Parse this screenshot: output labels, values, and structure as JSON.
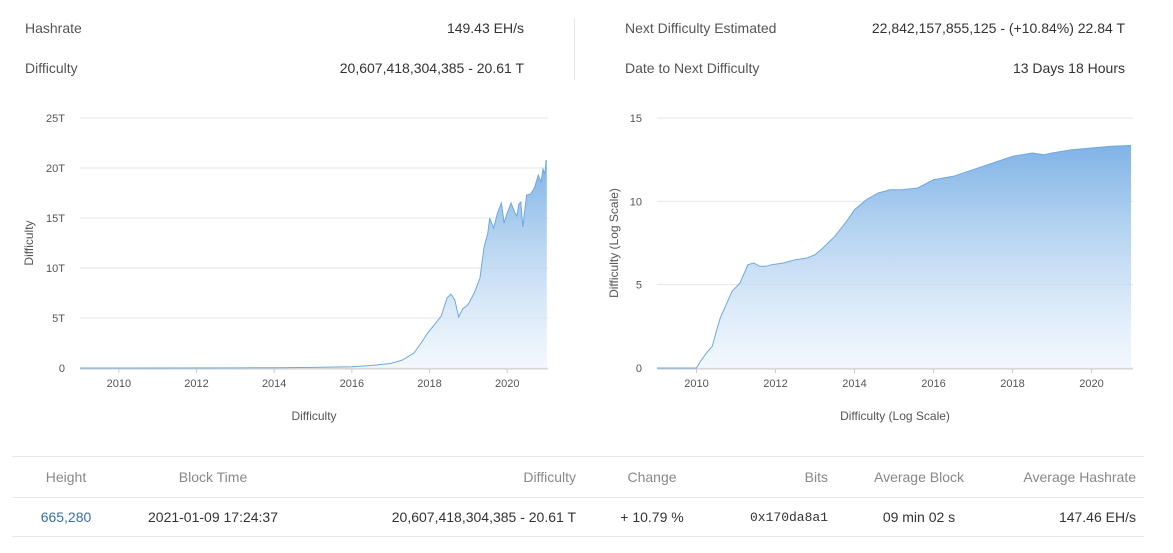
{
  "stats": {
    "hashrate_label": "Hashrate",
    "hashrate_value": "149.43 EH/s",
    "difficulty_label": "Difficulty",
    "difficulty_value": "20,607,418,304,385 - 20.61 T",
    "next_difficulty_label": "Next Difficulty Estimated",
    "next_difficulty_value": "22,842,157,855,125 - (+10.84%) 22.84 T",
    "date_to_next_label": "Date to Next Difficulty",
    "date_to_next_value": "13 Days 18 Hours"
  },
  "colors": {
    "area_top": "#7fb3e6",
    "area_bottom": "#eaf3fc",
    "line": "#6fa8df",
    "grid": "#e4e4e4",
    "link": "#3a6ea5",
    "positive": "#2e9c4c"
  },
  "chart_data": [
    {
      "type": "area",
      "xlabel": "Difficulty",
      "ylabel": "Difficulty",
      "xlim": [
        2009.0,
        2021.05
      ],
      "ylim": [
        0,
        25
      ],
      "y_ticks": [
        0,
        5,
        10,
        15,
        20,
        25
      ],
      "y_tick_labels": [
        "0",
        "5T",
        "10T",
        "15T",
        "20T",
        "25T"
      ],
      "x_ticks": [
        2010,
        2012,
        2014,
        2016,
        2018,
        2020
      ],
      "x_tick_labels": [
        "2010",
        "2012",
        "2014",
        "2016",
        "2018",
        "2020"
      ],
      "grid": true,
      "series": [
        {
          "x": [
            2009.0,
            2013.0,
            2014.0,
            2015.0,
            2016.0,
            2016.5,
            2017.0,
            2017.3,
            2017.6,
            2017.8,
            2017.95,
            2018.1,
            2018.3,
            2018.45,
            2018.55,
            2018.65,
            2018.75,
            2018.85,
            2018.95,
            2019.0,
            2019.15,
            2019.3,
            2019.4,
            2019.5,
            2019.55,
            2019.65,
            2019.75,
            2019.85,
            2019.92,
            2020.0,
            2020.1,
            2020.2,
            2020.25,
            2020.3,
            2020.35,
            2020.4,
            2020.5,
            2020.6,
            2020.7,
            2020.8,
            2020.87,
            2020.92,
            2020.97,
            2021.0,
            2021.02
          ],
          "y": [
            0,
            0.01,
            0.03,
            0.06,
            0.12,
            0.25,
            0.45,
            0.8,
            1.5,
            2.6,
            3.5,
            4.2,
            5.2,
            7.0,
            7.4,
            6.8,
            5.1,
            5.9,
            6.2,
            6.4,
            7.5,
            9.0,
            12.0,
            13.5,
            15.0,
            14.0,
            15.5,
            16.5,
            14.5,
            15.5,
            16.5,
            15.5,
            15.2,
            16.4,
            16.6,
            14.1,
            17.3,
            17.4,
            18.0,
            19.3,
            18.6,
            19.9,
            19.4,
            20.8,
            20.61
          ]
        }
      ]
    },
    {
      "type": "area",
      "xlabel": "Difficulty (Log Scale)",
      "ylabel": "Difficulty (Log Scale)",
      "xlim": [
        2009.0,
        2021.05
      ],
      "ylim": [
        0,
        15
      ],
      "y_ticks": [
        0,
        5,
        10,
        15
      ],
      "y_tick_labels": [
        "0",
        "5",
        "10",
        "15"
      ],
      "x_ticks": [
        2010,
        2012,
        2014,
        2016,
        2018,
        2020
      ],
      "x_tick_labels": [
        "2010",
        "2012",
        "2014",
        "2016",
        "2018",
        "2020"
      ],
      "grid": true,
      "series": [
        {
          "x": [
            2009.0,
            2010.0,
            2010.1,
            2010.25,
            2010.4,
            2010.5,
            2010.6,
            2010.75,
            2010.9,
            2011.1,
            2011.3,
            2011.45,
            2011.6,
            2011.75,
            2011.9,
            2012.2,
            2012.5,
            2012.8,
            2013.0,
            2013.2,
            2013.5,
            2013.8,
            2014.0,
            2014.3,
            2014.6,
            2014.9,
            2015.2,
            2015.6,
            2016.0,
            2016.5,
            2017.0,
            2017.5,
            2018.0,
            2018.5,
            2018.8,
            2019.0,
            2019.5,
            2020.0,
            2020.5,
            2021.0
          ],
          "y": [
            0,
            0,
            0.4,
            0.9,
            1.3,
            2.2,
            3.0,
            3.8,
            4.6,
            5.1,
            6.2,
            6.3,
            6.1,
            6.1,
            6.2,
            6.3,
            6.5,
            6.6,
            6.8,
            7.2,
            7.9,
            8.8,
            9.5,
            10.1,
            10.5,
            10.7,
            10.7,
            10.8,
            11.3,
            11.5,
            11.9,
            12.3,
            12.7,
            12.9,
            12.8,
            12.9,
            13.1,
            13.2,
            13.3,
            13.35
          ]
        }
      ]
    }
  ],
  "table": {
    "headers": {
      "height": "Height",
      "block_time": "Block Time",
      "difficulty": "Difficulty",
      "change": "Change",
      "bits": "Bits",
      "average_block": "Average Block",
      "average_hashrate": "Average Hashrate"
    },
    "row": {
      "height": "665,280",
      "block_time": "2021-01-09 17:24:37",
      "difficulty": "20,607,418,304,385 - 20.61 T",
      "change": "+ 10.79 %",
      "bits": "0x170da8a1",
      "average_block": "09 min 02 s",
      "average_hashrate": "147.46 EH/s"
    }
  }
}
